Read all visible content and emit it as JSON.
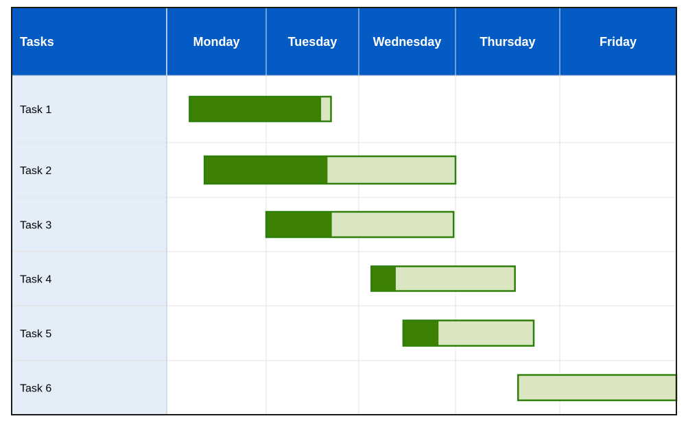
{
  "chart_data": {
    "type": "gantt",
    "header_label": "Tasks",
    "days": [
      "Monday",
      "Tuesday",
      "Wednesday",
      "Thursday",
      "Friday"
    ],
    "tasks": [
      {
        "name": "Task 1",
        "start": 0.23,
        "end": 1.7,
        "complete": 0.93
      },
      {
        "name": "Task 2",
        "start": 0.38,
        "end": 3.0,
        "complete": 0.49
      },
      {
        "name": "Task 3",
        "start": 1.0,
        "end": 2.98,
        "complete": 0.35
      },
      {
        "name": "Task 4",
        "start": 2.13,
        "end": 3.57,
        "complete": 0.17
      },
      {
        "name": "Task 5",
        "start": 2.46,
        "end": 3.75,
        "complete": 0.27
      },
      {
        "name": "Task 6",
        "start": 3.6,
        "end": 5.0,
        "complete": 0.0
      }
    ]
  },
  "colors": {
    "header_bg": "#045bc4",
    "header_text": "#ffffff",
    "task_col_bg": "#e4eef9",
    "grid_line": "#e5e3dc",
    "border": "#1a1a1a",
    "bar_done": "#3c8104",
    "bar_remaining": "#d9e6c1",
    "bar_outline": "#2f7d0b"
  }
}
